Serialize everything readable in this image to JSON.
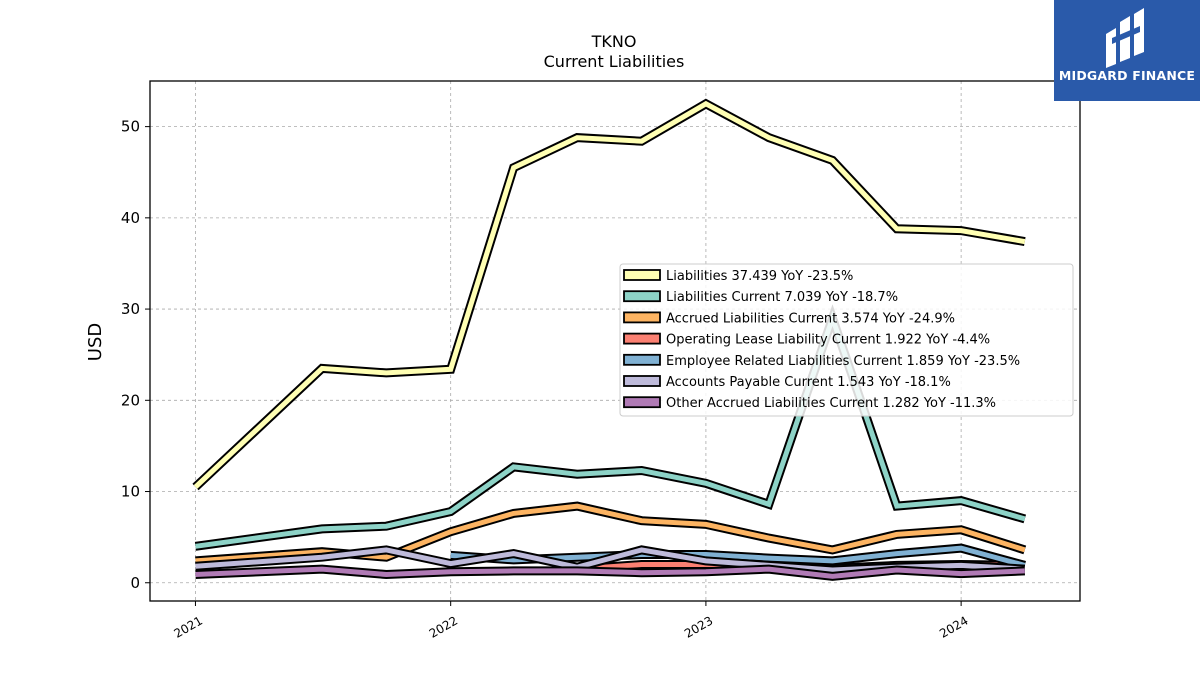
{
  "brand": {
    "name": "MIDGARD FINANCE",
    "bg_color": "#2a5aaa",
    "icon": "midgard-logo-icon"
  },
  "chart_data": {
    "type": "line",
    "title": "TKNO",
    "subtitle": "Current  Liabilities",
    "ylabel": "USD",
    "xlabel": "",
    "ylim": [
      -2,
      55
    ],
    "yticks": [
      0,
      10,
      20,
      30,
      40,
      50
    ],
    "xlim": [
      "2020-10-28",
      "2024-06-19"
    ],
    "xticks": [
      {
        "date": "2021-01-01",
        "label": "2021"
      },
      {
        "date": "2022-01-01",
        "label": "2022"
      },
      {
        "date": "2023-01-01",
        "label": "2023"
      },
      {
        "date": "2024-01-01",
        "label": "2024"
      }
    ],
    "grid": true,
    "legend_position": "right",
    "dates": [
      "2021-01-01",
      "2021-07-01",
      "2021-10-01",
      "2022-01-01",
      "2022-04-01",
      "2022-07-01",
      "2022-10-01",
      "2023-01-01",
      "2023-04-01",
      "2023-07-01",
      "2023-10-01",
      "2024-01-01",
      "2024-04-01"
    ],
    "series": [
      {
        "name": "Liabilities",
        "legend": "Liabilities  37.439 YoY -23.5%",
        "color": "#ffffb3",
        "values": [
          10.5,
          23.5,
          23.0,
          23.4,
          45.5,
          48.8,
          48.4,
          52.5,
          48.8,
          46.3,
          38.8,
          38.6,
          37.4
        ]
      },
      {
        "name": "Liabilities Current",
        "legend": "Liabilities Current  7.039 YoY -18.7%",
        "color": "#8dd3c7",
        "values": [
          4.0,
          5.9,
          6.2,
          7.8,
          12.7,
          11.9,
          12.3,
          10.9,
          8.6,
          29.0,
          8.4,
          9.0,
          7.0
        ]
      },
      {
        "name": "Accrued Liabilities Current",
        "legend": "Accrued Liabilities Current  3.574 YoY -24.9%",
        "color": "#fdb462",
        "values": [
          2.4,
          3.4,
          2.8,
          5.6,
          7.6,
          8.4,
          6.8,
          6.4,
          4.9,
          3.6,
          5.3,
          5.8,
          3.6
        ]
      },
      {
        "name": "Operating Lease Liability Current",
        "legend": "Operating Lease Liability Current  1.922 YoY -4.4%",
        "color": "#fb8072",
        "values": [
          null,
          null,
          null,
          null,
          null,
          1.5,
          2.0,
          2.0,
          1.8,
          1.6,
          1.9,
          2.0,
          1.9
        ]
      },
      {
        "name": "Employee Related Liabilities Current",
        "legend": "Employee Related Liabilities Current  1.859 YoY -23.5%",
        "color": "#80b1d3",
        "values": [
          null,
          null,
          null,
          3.0,
          2.5,
          2.8,
          3.1,
          3.1,
          2.7,
          2.4,
          3.2,
          3.8,
          1.9
        ]
      },
      {
        "name": "Accounts Payable Current",
        "legend": "Accounts Payable Current  1.543 YoY -18.1%",
        "color": "#bebada",
        "values": [
          1.8,
          2.8,
          3.6,
          2.1,
          3.2,
          1.7,
          3.6,
          2.4,
          1.9,
          1.4,
          1.7,
          1.9,
          1.5
        ]
      },
      {
        "name": "Other Accrued Liabilities Current",
        "legend": "Other Accrued Liabilities Current  1.282 YoY -11.3%",
        "color": "#b07ab5",
        "values": [
          0.9,
          1.5,
          0.9,
          1.2,
          1.3,
          1.3,
          1.1,
          1.2,
          1.5,
          0.7,
          1.4,
          1.0,
          1.3
        ]
      }
    ]
  }
}
